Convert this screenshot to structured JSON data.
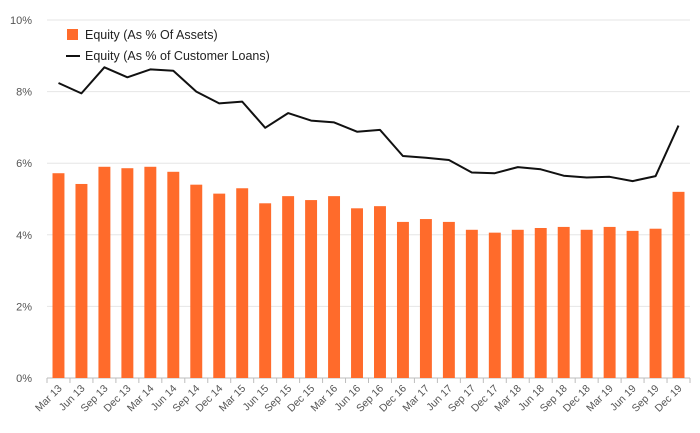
{
  "chart_data": {
    "type": "bar",
    "title": "",
    "xlabel": "",
    "ylabel": "",
    "ylim": [
      0,
      10
    ],
    "yticks": [
      0,
      2,
      4,
      6,
      8,
      10
    ],
    "ytick_labels": [
      "0%",
      "2%",
      "4%",
      "6%",
      "8%",
      "10%"
    ],
    "grid": true,
    "legend_position": "top-left",
    "categories": [
      "Mar 13",
      "Jun 13",
      "Sep 13",
      "Dec 13",
      "Mar 14",
      "Jun 14",
      "Sep 14",
      "Dec 14",
      "Mar 15",
      "Jun 15",
      "Sep 15",
      "Dec 15",
      "Mar 16",
      "Jun 16",
      "Sep 16",
      "Dec 16",
      "Mar 17",
      "Jun 17",
      "Sep 17",
      "Dec 17",
      "Mar 18",
      "Jun 18",
      "Sep 18",
      "Dec 18",
      "Mar 19",
      "Jun 19",
      "Sep 19",
      "Dec 19"
    ],
    "series": [
      {
        "name": "Equity (As % Of Assets)",
        "type": "bar",
        "color": "#ff6b2b",
        "values": [
          5.72,
          5.42,
          5.9,
          5.86,
          5.9,
          5.76,
          5.4,
          5.15,
          5.3,
          4.88,
          5.08,
          4.97,
          5.08,
          4.74,
          4.8,
          4.36,
          4.44,
          4.36,
          4.14,
          4.06,
          4.14,
          4.19,
          4.22,
          4.14,
          4.22,
          4.11,
          4.17,
          5.2
        ]
      },
      {
        "name": "Equity (As % of Customer Loans)",
        "type": "line",
        "color": "#111111",
        "values": [
          8.24,
          7.95,
          8.68,
          8.4,
          8.62,
          8.58,
          8.0,
          7.67,
          7.72,
          6.99,
          7.4,
          7.19,
          7.14,
          6.88,
          6.93,
          6.2,
          6.15,
          6.09,
          5.74,
          5.72,
          5.89,
          5.83,
          5.65,
          5.6,
          5.62,
          5.5,
          5.64,
          7.05
        ]
      }
    ]
  }
}
